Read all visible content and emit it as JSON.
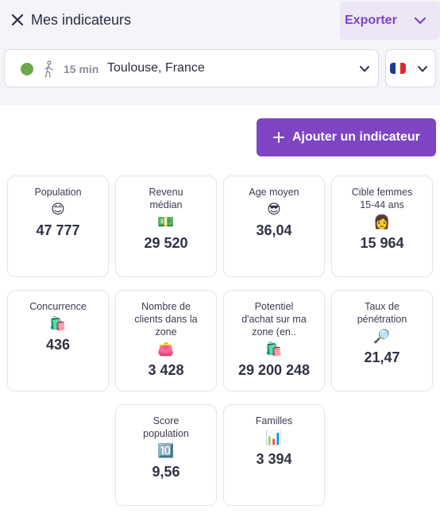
{
  "header": {
    "title": "Mes indicateurs",
    "export_label": "Exporter"
  },
  "location": {
    "status_color": "#6ea84c",
    "travel_time": "15 min",
    "place": "Toulouse, France"
  },
  "country": {
    "flag": "france-flag-icon"
  },
  "add_button_label": "Ajouter un indicateur",
  "colors": {
    "accent": "#7e44c4",
    "accent_light": "#ece6f6",
    "text": "#2b2d42"
  },
  "indicators": [
    {
      "label": "Population",
      "emoji": "😊",
      "value": "47 777"
    },
    {
      "label": "Revenu médian",
      "emoji": "💵",
      "value": "29 520"
    },
    {
      "label": "Age moyen",
      "emoji": "😎",
      "value": "36,04"
    },
    {
      "label": "Cible femmes 15-44 ans",
      "emoji": "👩",
      "value": "15 964"
    },
    {
      "label": "Concurrence",
      "emoji": "🛍️",
      "value": "436"
    },
    {
      "label": "Nombre de clients dans la zone",
      "emoji": "👛",
      "value": "3 428"
    },
    {
      "label": "Potentiel d'achat sur ma zone (en..",
      "emoji": "🛍️",
      "value": "29 200 248"
    },
    {
      "label": "Taux de pénétration",
      "emoji": "🔎",
      "value": "21,47"
    },
    {
      "label": "Score population",
      "emoji": "🔟",
      "value": "9,56"
    },
    {
      "label": "Familles",
      "emoji": "📊",
      "value": "3 394"
    }
  ]
}
